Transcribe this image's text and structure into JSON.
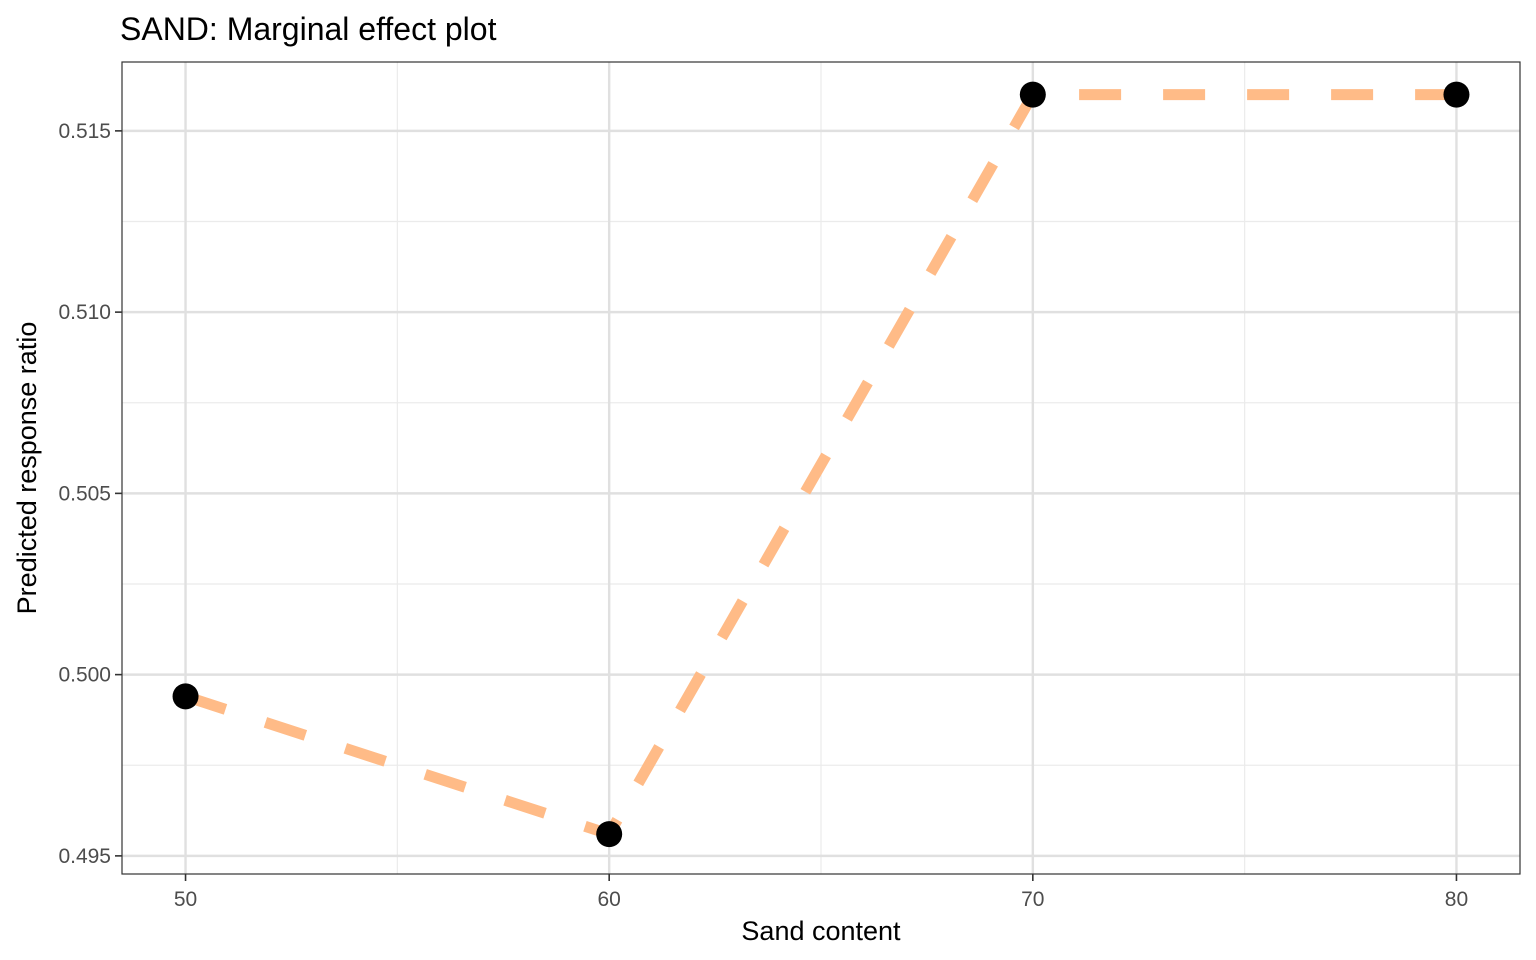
{
  "chart_data": {
    "type": "line",
    "title": "SAND: Marginal effect plot",
    "xlabel": "Sand content",
    "ylabel": "Predicted response ratio",
    "x": [
      50,
      60,
      70,
      80
    ],
    "y": [
      0.4994,
      0.4956,
      0.516,
      0.516
    ],
    "xlim": [
      48.5,
      81.5
    ],
    "ylim": [
      0.4945,
      0.5169
    ],
    "xticks": [
      50,
      60,
      70,
      80
    ],
    "xtick_labels": [
      "50",
      "60",
      "70",
      "80"
    ],
    "yticks": [
      0.495,
      0.5,
      0.505,
      0.51,
      0.515
    ],
    "ytick_labels": [
      "0.495",
      "0.500",
      "0.505",
      "0.510",
      "0.515"
    ],
    "x_minor": [
      55,
      65,
      75
    ],
    "y_minor": [
      0.4975,
      0.5025,
      0.5075,
      0.5125
    ],
    "grid": true,
    "line_style": "dashed",
    "line_color": "#FFBB87",
    "point_color": "#000000"
  }
}
